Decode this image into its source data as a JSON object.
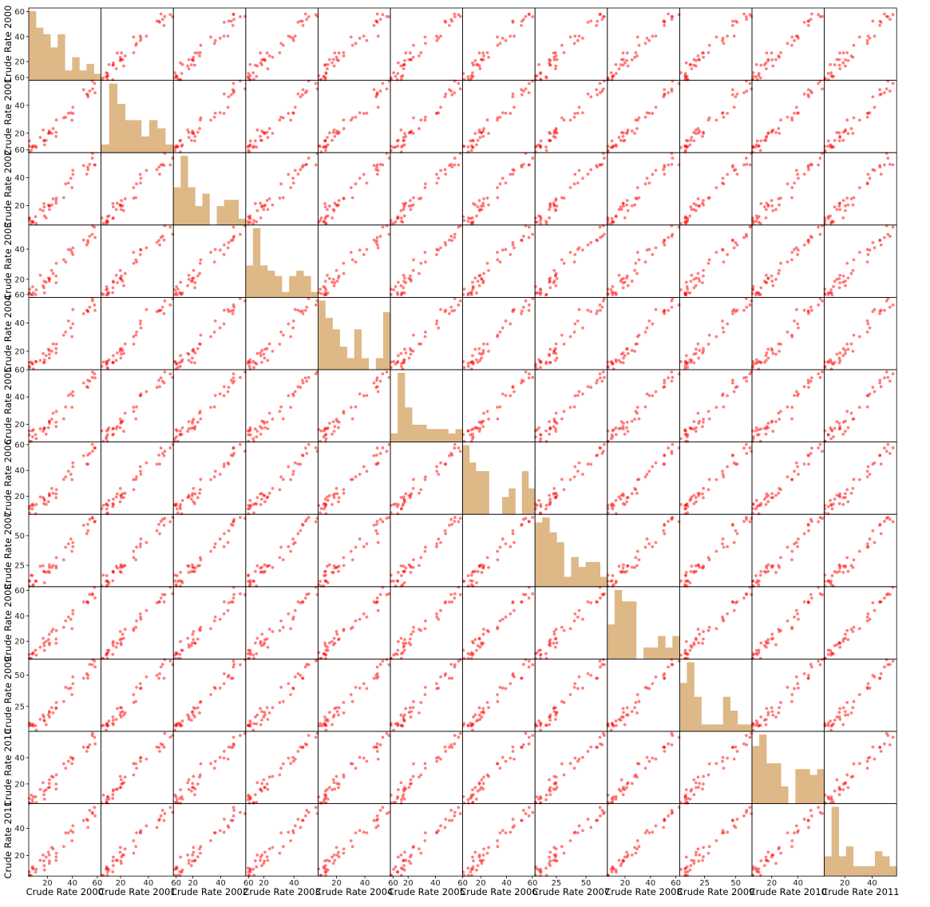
{
  "chart_data": {
    "type": "scatter",
    "kind": "scatter_matrix",
    "variables": [
      "Crude Rate 2000",
      "Crude Rate 2001",
      "Crude Rate 2002",
      "Crude Rate 2003",
      "Crude Rate 2004",
      "Crude Rate 2005",
      "Crude Rate 2006",
      "Crude Rate 2007",
      "Crude Rate 2008",
      "Crude Rate 2009",
      "Crude Rate 2010",
      "Crude Rate 2011"
    ],
    "ranges": [
      [
        5,
        63
      ],
      [
        6,
        58
      ],
      [
        6,
        58
      ],
      [
        8,
        56
      ],
      [
        7,
        58
      ],
      [
        7,
        60
      ],
      [
        6,
        62
      ],
      [
        7,
        68
      ],
      [
        6,
        63
      ],
      [
        5,
        63
      ],
      [
        5,
        60
      ],
      [
        5,
        58
      ]
    ],
    "ticks": [
      [
        20,
        40,
        60
      ],
      [
        20,
        40,
        60
      ],
      [
        20,
        40,
        60
      ],
      [
        20,
        40
      ],
      [
        20,
        40,
        60
      ],
      [
        20,
        40,
        60
      ],
      [
        20,
        40,
        60
      ],
      [
        25,
        50
      ],
      [
        20,
        40,
        60
      ],
      [
        25,
        50
      ],
      [
        20,
        40
      ],
      [
        20,
        40
      ]
    ],
    "histograms": [
      [
        21,
        16,
        14,
        10,
        14,
        3,
        7,
        3,
        5,
        2
      ],
      [
        2,
        17,
        12,
        8,
        8,
        4,
        8,
        6,
        2
      ],
      [
        6,
        11,
        6,
        3,
        5,
        0,
        3,
        4,
        4,
        1
      ],
      [
        6,
        13,
        6,
        5,
        4,
        1,
        4,
        5,
        4,
        1
      ],
      [
        12,
        9,
        7,
        4,
        2,
        7,
        2,
        0,
        2,
        10
      ],
      [
        2,
        16,
        8,
        4,
        4,
        3,
        3,
        3,
        2,
        3
      ],
      [
        8,
        6,
        5,
        5,
        0,
        0,
        2,
        3,
        0,
        5,
        3
      ],
      [
        13,
        14,
        11,
        9,
        2,
        6,
        4,
        5,
        5,
        2
      ],
      [
        3,
        6,
        5,
        5,
        0,
        1,
        1,
        2,
        1,
        2
      ],
      [
        7,
        10,
        5,
        1,
        1,
        1,
        5,
        3,
        1,
        1
      ],
      [
        10,
        12,
        7,
        7,
        3,
        0,
        6,
        6,
        5,
        6
      ],
      [
        4,
        14,
        4,
        6,
        2,
        2,
        2,
        5,
        4,
        2
      ]
    ],
    "hist_color": "#deb887",
    "point_color": "#ff0000",
    "point_alpha": 0.5,
    "grid": false,
    "legend": "none",
    "title": ""
  }
}
